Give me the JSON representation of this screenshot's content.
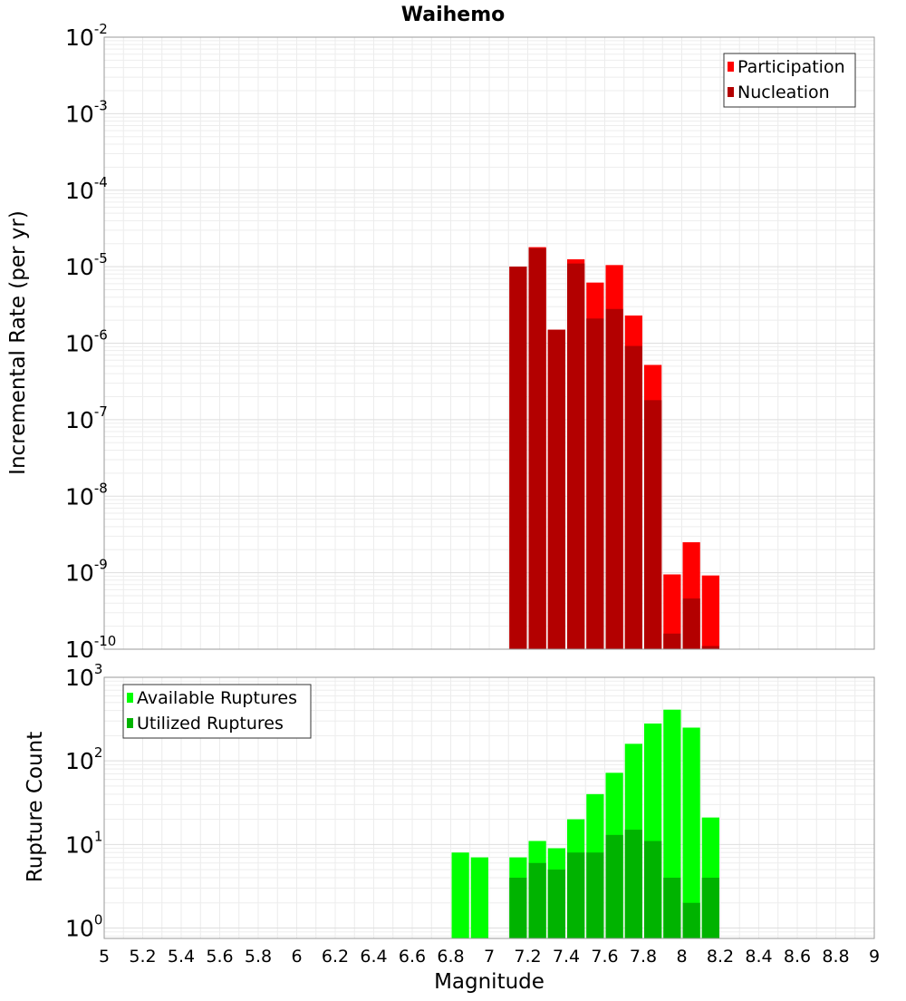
{
  "chart_data": [
    {
      "type": "bar",
      "title": "Waihemo",
      "xlabel": "",
      "ylabel": "Incremental Rate (per yr)",
      "yscale": "log",
      "xlim": [
        5,
        9
      ],
      "ylim": [
        1e-10,
        0.01
      ],
      "grid": true,
      "legend_position": "top-right",
      "y_ticks": [
        {
          "base": "10",
          "exp": "-10",
          "value": 1e-10
        },
        {
          "base": "10",
          "exp": "-9",
          "value": 1e-09
        },
        {
          "base": "10",
          "exp": "-8",
          "value": 1e-08
        },
        {
          "base": "10",
          "exp": "-7",
          "value": 1e-07
        },
        {
          "base": "10",
          "exp": "-6",
          "value": 1e-06
        },
        {
          "base": "10",
          "exp": "-5",
          "value": 1e-05
        },
        {
          "base": "10",
          "exp": "-4",
          "value": 0.0001
        },
        {
          "base": "10",
          "exp": "-3",
          "value": 0.001
        },
        {
          "base": "10",
          "exp": "-2",
          "value": 0.01
        }
      ],
      "series": [
        {
          "name": "Participation",
          "color": "#ff0000",
          "x": [
            7.15,
            7.25,
            7.35,
            7.45,
            7.55,
            7.65,
            7.75,
            7.85,
            7.95,
            8.05,
            8.15
          ],
          "values": [
            1e-05,
            1.8e-05,
            1.5e-06,
            1.25e-05,
            6.2e-06,
            1.05e-05,
            2.3e-06,
            5.2e-07,
            9.5e-10,
            2.5e-09,
            9.2e-10
          ]
        },
        {
          "name": "Nucleation",
          "color": "#b30000",
          "x": [
            7.15,
            7.25,
            7.35,
            7.45,
            7.55,
            7.65,
            7.75,
            7.85,
            7.95,
            8.05,
            8.15
          ],
          "values": [
            1e-05,
            1.75e-05,
            1.5e-06,
            1.1e-05,
            2.1e-06,
            2.8e-06,
            9.2e-07,
            1.8e-07,
            1.6e-10,
            4.6e-10,
            1.1e-10
          ]
        }
      ]
    },
    {
      "type": "bar",
      "title": "",
      "xlabel": "Magnitude",
      "ylabel": "Rupture Count",
      "yscale": "log",
      "xlim": [
        5,
        9
      ],
      "ylim": [
        0.75,
        1000
      ],
      "grid": true,
      "legend_position": "top-left",
      "x_ticks": [
        "5",
        "5.2",
        "5.4",
        "5.6",
        "5.8",
        "6",
        "6.2",
        "6.4",
        "6.6",
        "6.8",
        "7",
        "7.2",
        "7.4",
        "7.6",
        "7.8",
        "8",
        "8.2",
        "8.4",
        "8.6",
        "8.8",
        "9"
      ],
      "y_ticks": [
        {
          "base": "10",
          "exp": "0",
          "value": 1
        },
        {
          "base": "10",
          "exp": "1",
          "value": 10
        },
        {
          "base": "10",
          "exp": "2",
          "value": 100
        },
        {
          "base": "10",
          "exp": "3",
          "value": 1000
        }
      ],
      "series": [
        {
          "name": "Available Ruptures",
          "color": "#00ff00",
          "x": [
            6.85,
            6.95,
            7.15,
            7.25,
            7.35,
            7.45,
            7.55,
            7.65,
            7.75,
            7.85,
            7.95,
            8.05,
            8.15
          ],
          "values": [
            8,
            7,
            7,
            11,
            9,
            20,
            40,
            72,
            160,
            280,
            410,
            250,
            21
          ]
        },
        {
          "name": "Utilized Ruptures",
          "color": "#00b300",
          "x": [
            7.15,
            7.25,
            7.35,
            7.45,
            7.55,
            7.65,
            7.75,
            7.85,
            7.95,
            8.05,
            8.15
          ],
          "values": [
            4,
            6,
            5,
            8,
            8,
            13,
            15,
            11,
            4,
            2,
            4
          ]
        }
      ]
    }
  ]
}
